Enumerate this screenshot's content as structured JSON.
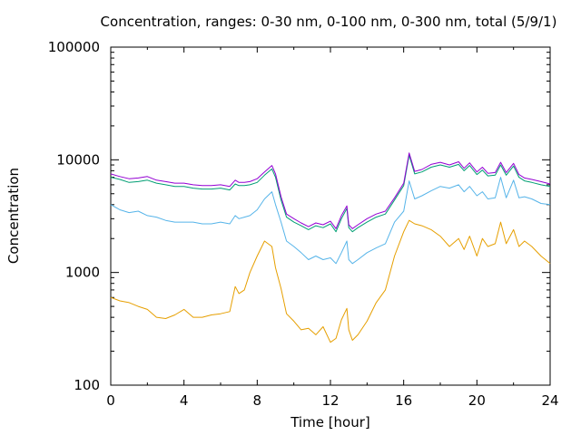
{
  "chart_data": {
    "type": "line",
    "title": "Concentration, ranges: 0-30 nm, 0-100 nm, 0-300 nm, total (5/9/1)",
    "xlabel": "Time [hour]",
    "ylabel": "Concentration",
    "xlim": [
      0,
      24
    ],
    "ylim": [
      100,
      100000
    ],
    "yscale": "log",
    "xticks": [
      0,
      4,
      8,
      12,
      16,
      20,
      24
    ],
    "xtick_labels": [
      "0",
      "4",
      "8",
      "12",
      "16",
      "20",
      "24"
    ],
    "yticks": [
      100,
      1000,
      10000,
      100000
    ],
    "ytick_labels": [
      "100",
      "1000",
      "10000",
      "100000"
    ],
    "grid": false,
    "series": [
      {
        "color": "#e69f00",
        "x": [
          0,
          0.5,
          1,
          1.5,
          2,
          2.5,
          3,
          3.5,
          4,
          4.5,
          5,
          5.5,
          6,
          6.5,
          6.8,
          7,
          7.3,
          7.6,
          8,
          8.4,
          8.8,
          9,
          9.3,
          9.6,
          10,
          10.4,
          10.8,
          11.2,
          11.6,
          12,
          12.3,
          12.6,
          12.9,
          13,
          13.2,
          13.5,
          14,
          14.5,
          15,
          15.5,
          16,
          16.3,
          16.6,
          17,
          17.5,
          18,
          18.5,
          19,
          19.3,
          19.6,
          20,
          20.3,
          20.6,
          21,
          21.3,
          21.6,
          22,
          22.3,
          22.6,
          23,
          23.5,
          24
        ],
        "y": [
          600,
          560,
          540,
          500,
          470,
          400,
          390,
          420,
          470,
          400,
          400,
          420,
          430,
          450,
          750,
          650,
          700,
          1000,
          1400,
          1900,
          1700,
          1100,
          720,
          430,
          370,
          310,
          320,
          280,
          330,
          240,
          260,
          380,
          480,
          310,
          250,
          280,
          370,
          540,
          700,
          1400,
          2300,
          2900,
          2700,
          2600,
          2400,
          2100,
          1700,
          2000,
          1600,
          2100,
          1400,
          2000,
          1700,
          1800,
          2800,
          1800,
          2400,
          1700,
          1900,
          1700,
          1400,
          1200
        ]
      },
      {
        "color": "#56b4e9",
        "x": [
          0,
          0.5,
          1,
          1.5,
          2,
          2.5,
          3,
          3.5,
          4,
          4.5,
          5,
          5.5,
          6,
          6.5,
          6.8,
          7,
          7.3,
          7.6,
          8,
          8.4,
          8.8,
          9,
          9.3,
          9.6,
          10,
          10.4,
          10.8,
          11.2,
          11.6,
          12,
          12.3,
          12.6,
          12.9,
          13,
          13.2,
          13.5,
          14,
          14.5,
          15,
          15.5,
          16,
          16.3,
          16.6,
          17,
          17.5,
          18,
          18.5,
          19,
          19.3,
          19.6,
          20,
          20.3,
          20.6,
          21,
          21.3,
          21.6,
          22,
          22.3,
          22.6,
          23,
          23.5,
          24
        ],
        "y": [
          4000,
          3600,
          3400,
          3500,
          3200,
          3100,
          2900,
          2800,
          2800,
          2800,
          2700,
          2700,
          2800,
          2700,
          3200,
          3000,
          3100,
          3200,
          3600,
          4500,
          5200,
          4000,
          2800,
          1900,
          1700,
          1500,
          1300,
          1400,
          1300,
          1350,
          1200,
          1500,
          1900,
          1300,
          1200,
          1300,
          1500,
          1650,
          1800,
          2800,
          3500,
          6500,
          4500,
          4800,
          5300,
          5800,
          5600,
          6000,
          5200,
          5800,
          4800,
          5200,
          4500,
          4600,
          7000,
          4600,
          6600,
          4600,
          4700,
          4500,
          4100,
          4000
        ]
      },
      {
        "color": "#009e73",
        "x": [
          0,
          0.5,
          1,
          1.5,
          2,
          2.5,
          3,
          3.5,
          4,
          4.5,
          5,
          5.5,
          6,
          6.5,
          6.8,
          7,
          7.3,
          7.6,
          8,
          8.4,
          8.8,
          9,
          9.3,
          9.6,
          10,
          10.4,
          10.8,
          11.2,
          11.6,
          12,
          12.3,
          12.6,
          12.9,
          13,
          13.2,
          13.5,
          14,
          14.5,
          15,
          15.5,
          16,
          16.3,
          16.6,
          17,
          17.5,
          18,
          18.5,
          19,
          19.3,
          19.6,
          20,
          20.3,
          20.6,
          21,
          21.3,
          21.6,
          22,
          22.3,
          22.6,
          23,
          23.5,
          24
        ],
        "y": [
          7000,
          6700,
          6300,
          6400,
          6600,
          6200,
          6000,
          5800,
          5800,
          5600,
          5500,
          5500,
          5600,
          5400,
          6100,
          5900,
          5900,
          6000,
          6300,
          7300,
          8300,
          7000,
          4400,
          3100,
          2800,
          2600,
          2400,
          2600,
          2500,
          2700,
          2300,
          3000,
          3700,
          2500,
          2300,
          2500,
          2800,
          3100,
          3300,
          4400,
          5900,
          11000,
          7500,
          7800,
          8600,
          9000,
          8600,
          9100,
          8000,
          8900,
          7400,
          8100,
          7200,
          7300,
          9000,
          7300,
          8800,
          7000,
          6500,
          6300,
          6000,
          5800
        ]
      },
      {
        "color": "#9400d3",
        "x": [
          0,
          0.5,
          1,
          1.5,
          2,
          2.5,
          3,
          3.5,
          4,
          4.5,
          5,
          5.5,
          6,
          6.5,
          6.8,
          7,
          7.3,
          7.6,
          8,
          8.4,
          8.8,
          9,
          9.3,
          9.6,
          10,
          10.4,
          10.8,
          11.2,
          11.6,
          12,
          12.3,
          12.6,
          12.9,
          13,
          13.2,
          13.5,
          14,
          14.5,
          15,
          15.5,
          16,
          16.3,
          16.6,
          17,
          17.5,
          18,
          18.5,
          19,
          19.3,
          19.6,
          20,
          20.3,
          20.6,
          21,
          21.3,
          21.6,
          22,
          22.3,
          22.6,
          23,
          23.5,
          24
        ],
        "y": [
          7500,
          7100,
          6800,
          6900,
          7100,
          6600,
          6400,
          6200,
          6200,
          6000,
          5900,
          5900,
          6000,
          5800,
          6600,
          6300,
          6300,
          6400,
          6800,
          7800,
          8900,
          7500,
          4700,
          3300,
          3000,
          2750,
          2550,
          2750,
          2650,
          2850,
          2450,
          3200,
          3900,
          2650,
          2450,
          2650,
          3000,
          3300,
          3500,
          4600,
          6200,
          11500,
          7900,
          8200,
          9100,
          9500,
          9000,
          9600,
          8400,
          9400,
          7800,
          8600,
          7600,
          7700,
          9500,
          7700,
          9300,
          7400,
          6900,
          6700,
          6400,
          6100
        ]
      }
    ]
  }
}
